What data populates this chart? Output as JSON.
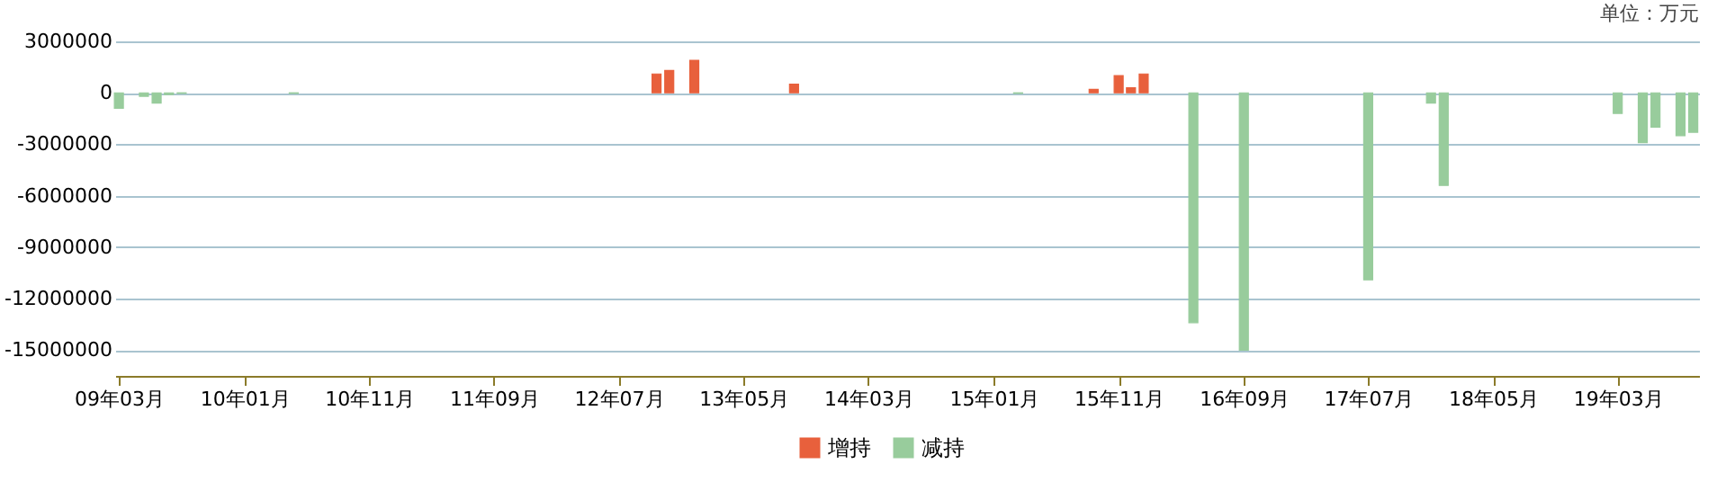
{
  "chart_data": {
    "type": "bar",
    "annotations": [
      "单位：万元"
    ],
    "xlim": [
      "2009-02-20",
      "2019-09-15"
    ],
    "xticks": [
      {
        "value": "2009-03",
        "label": "09年03月"
      },
      {
        "value": "2010-01",
        "label": "10年01月"
      },
      {
        "value": "2010-11",
        "label": "10年11月"
      },
      {
        "value": "2011-09",
        "label": "11年09月"
      },
      {
        "value": "2012-07",
        "label": "12年07月"
      },
      {
        "value": "2013-05",
        "label": "13年05月"
      },
      {
        "value": "2014-03",
        "label": "14年03月"
      },
      {
        "value": "2015-01",
        "label": "15年01月"
      },
      {
        "value": "2015-11",
        "label": "15年11月"
      },
      {
        "value": "2016-09",
        "label": "16年09月"
      },
      {
        "value": "2017-07",
        "label": "17年07月"
      },
      {
        "value": "2018-05",
        "label": "18年05月"
      },
      {
        "value": "2019-03",
        "label": "19年03月"
      }
    ],
    "ylim": [
      -16500000,
      3000000
    ],
    "yticks": [
      3000000,
      0,
      -3000000,
      -6000000,
      -9000000,
      -12000000,
      -15000000
    ],
    "grid": "y",
    "legend": "bottom",
    "series": [
      {
        "name": "增持",
        "color": "#e8603c",
        "x": [
          "2012-10",
          "2012-11",
          "2013-01",
          "2013-09",
          "2015-09",
          "2015-11",
          "2015-12",
          "2016-01"
        ],
        "values": [
          1100000,
          1300000,
          1900000,
          500000,
          200000,
          1000000,
          300000,
          1100000
        ]
      },
      {
        "name": "减持",
        "color": "#98cc9c",
        "x": [
          "2009-03",
          "2009-05",
          "2009-06",
          "2009-07",
          "2009-08",
          "2010-05",
          "2015-03",
          "2016-05",
          "2016-09",
          "2017-07",
          "2017-12",
          "2018-01",
          "2019-03",
          "2019-05",
          "2019-06",
          "2019-08",
          "2019-09"
        ],
        "values": [
          -900000,
          -200000,
          -600000,
          -100000,
          -30000,
          -30000,
          -30000,
          -13400000,
          -15000000,
          -10900000,
          -600000,
          -5400000,
          -1200000,
          -2900000,
          -2000000,
          -2500000,
          -2300000
        ]
      }
    ]
  }
}
